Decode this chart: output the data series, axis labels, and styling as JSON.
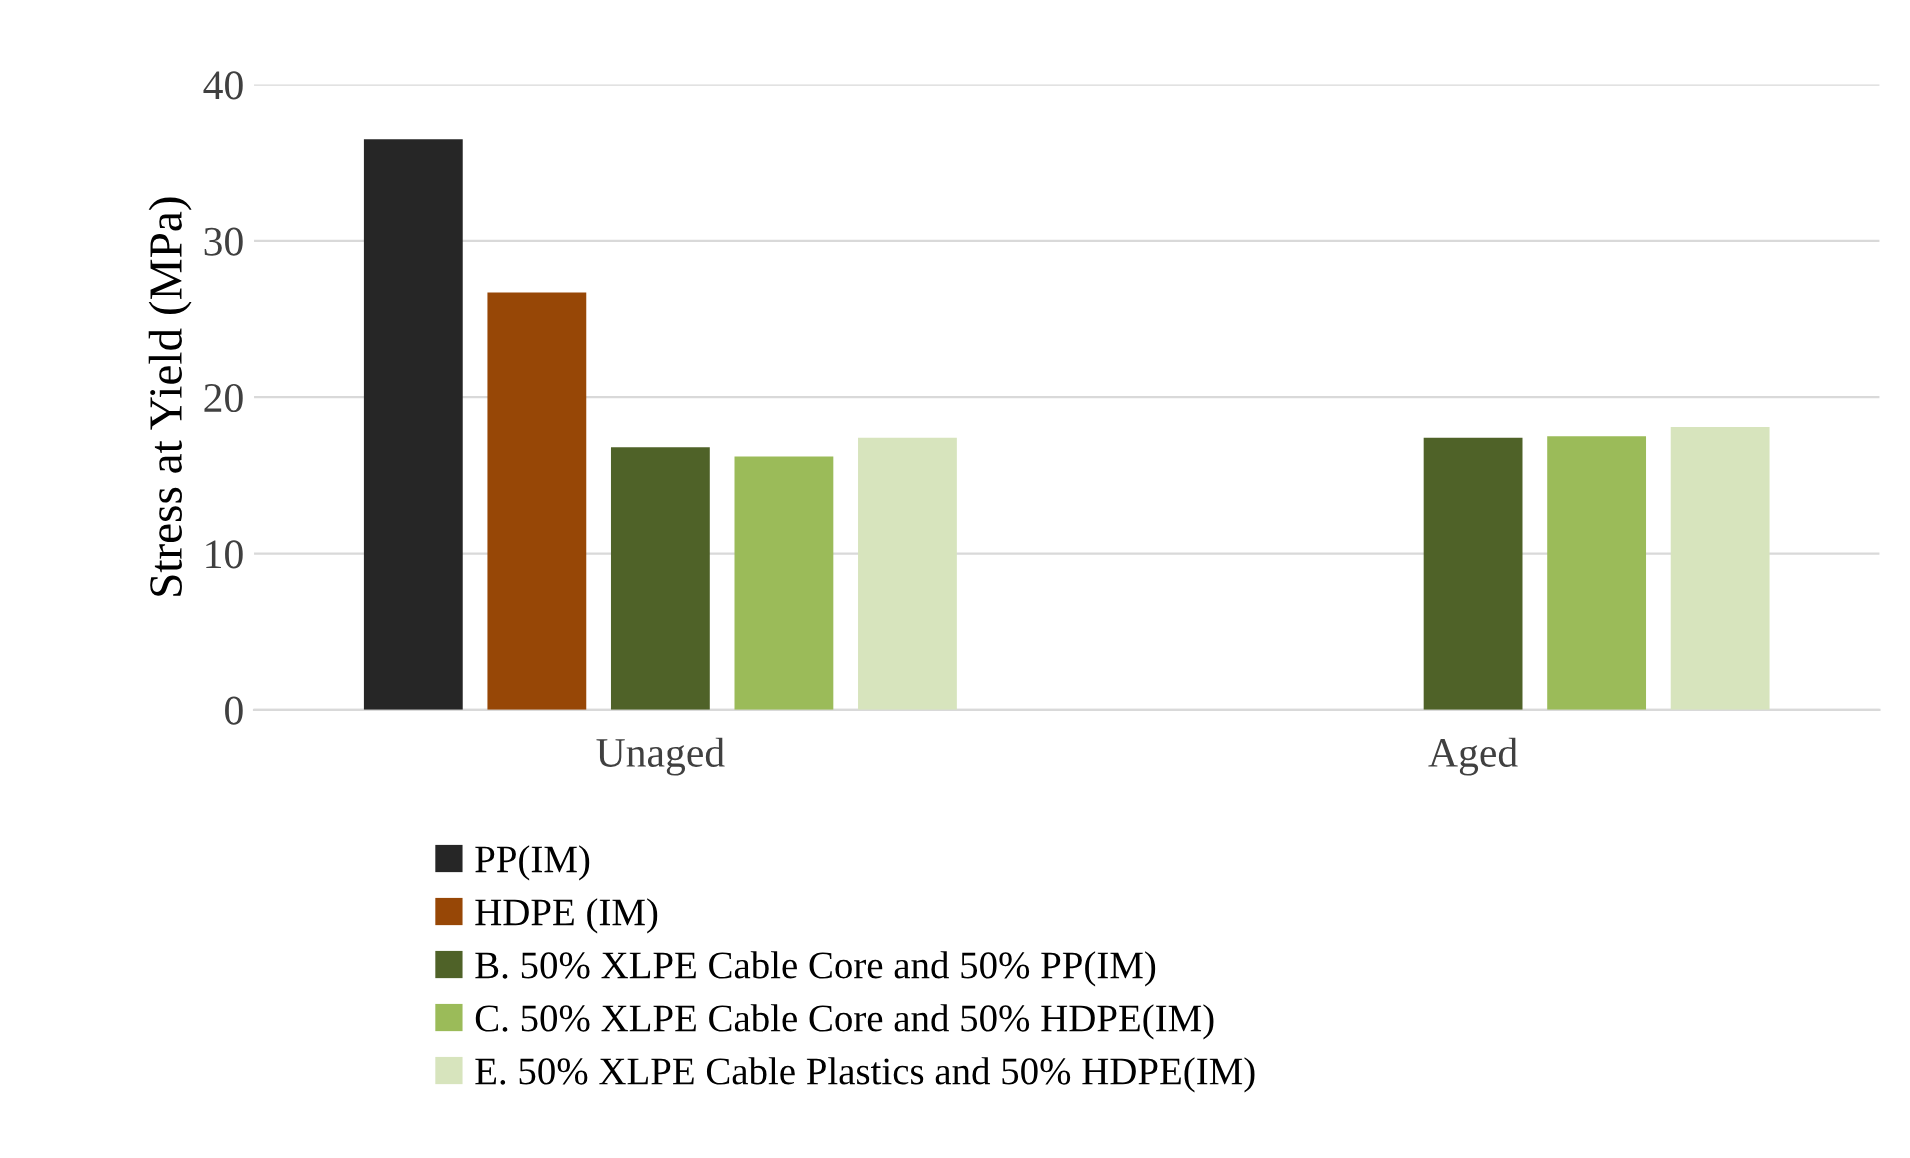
{
  "chart_data": {
    "type": "bar",
    "ylabel": "Stress at Yield (MPa)",
    "categories": [
      "Unaged",
      "Aged"
    ],
    "series": [
      {
        "name": "PP(IM)",
        "color": "#262626",
        "values": [
          36.5,
          null
        ]
      },
      {
        "name": "HDPE (IM)",
        "color": "#974706",
        "values": [
          26.7,
          null
        ]
      },
      {
        "name": "B. 50% XLPE Cable Core and 50% PP(IM)",
        "color": "#4f6228",
        "values": [
          16.8,
          17.4
        ]
      },
      {
        "name": "C. 50% XLPE Cable Core and 50% HDPE(IM)",
        "color": "#9bbb59",
        "values": [
          16.2,
          17.5
        ]
      },
      {
        "name": "E. 50% XLPE Cable Plastics and 50% HDPE(IM)",
        "color": "#d7e4bd",
        "values": [
          17.4,
          18.1
        ]
      }
    ],
    "ylim": [
      0,
      40
    ],
    "yticks": [
      0,
      10,
      20,
      30,
      40
    ],
    "grid": "y",
    "legend": "bottom"
  }
}
